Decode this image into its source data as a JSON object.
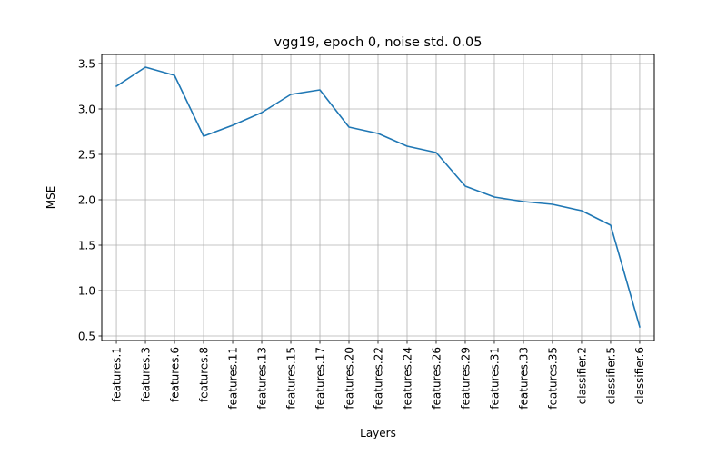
{
  "chart_data": {
    "type": "line",
    "title": "vgg19, epoch 0, noise std. 0.05",
    "xlabel": "Layers",
    "ylabel": "MSE",
    "categories": [
      "features.1",
      "features.3",
      "features.6",
      "features.8",
      "features.11",
      "features.13",
      "features.15",
      "features.17",
      "features.20",
      "features.22",
      "features.24",
      "features.26",
      "features.29",
      "features.31",
      "features.33",
      "features.35",
      "classifier.2",
      "classifier.5",
      "classifier.6"
    ],
    "series": [
      {
        "values": [
          3.25,
          3.46,
          3.37,
          2.7,
          2.82,
          2.96,
          3.16,
          3.21,
          2.8,
          2.73,
          2.59,
          2.52,
          2.15,
          2.03,
          1.98,
          1.95,
          1.88,
          1.72,
          0.6
        ]
      }
    ],
    "ylim": [
      0.45,
      3.6
    ],
    "yticks": [
      0.5,
      1.0,
      1.5,
      2.0,
      2.5,
      3.0,
      3.5
    ],
    "ytick_labels": [
      "0.5",
      "1.0",
      "1.5",
      "2.0",
      "2.5",
      "3.0",
      "3.5"
    ],
    "grid": true,
    "line_color": "#1f77b4"
  }
}
